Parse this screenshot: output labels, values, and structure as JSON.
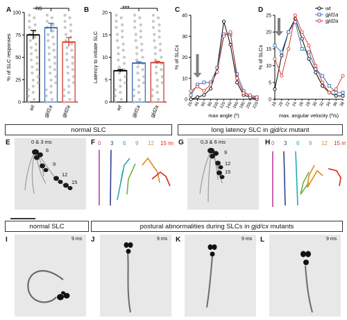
{
  "panel_letters": {
    "a": "A",
    "b": "B",
    "c": "C",
    "d": "D",
    "e": "E",
    "f": "F",
    "g": "G",
    "h": "H",
    "i": "I",
    "j": "J",
    "k": "K",
    "l": "L"
  },
  "colors": {
    "wt": "#000000",
    "gjd1a": "#3b6fb6",
    "gjd2a": "#d33a2c",
    "bar_fill": "#bdbdbd",
    "dot": "#bdbdbd",
    "arrow": "#7f7f7f"
  },
  "chart_data": [
    {
      "id": "A",
      "type": "bar",
      "ylabel": "% of SLC responses",
      "categories": [
        "wt",
        "gjd1a",
        "gjd2a"
      ],
      "values": [
        75,
        83,
        67
      ],
      "errors": [
        5,
        5,
        5
      ],
      "ylim": [
        0,
        100
      ],
      "yticks": [
        0,
        25,
        50,
        75,
        100
      ],
      "significance": "ns"
    },
    {
      "id": "B",
      "type": "bar",
      "ylabel": "Latency to initiate SLC",
      "categories": [
        "wt",
        "gjd1a",
        "gjd2a"
      ],
      "values": [
        7,
        8.7,
        8.8
      ],
      "errors": [
        0.3,
        0.3,
        0.3
      ],
      "ylim": [
        0,
        20
      ],
      "yticks": [
        0,
        5,
        10,
        15,
        20
      ],
      "significance": "***"
    },
    {
      "id": "C",
      "type": "line",
      "xlabel": "max angle (º)",
      "ylabel": "% of SLCs",
      "x": [
        20,
        40,
        60,
        80,
        100,
        120,
        140,
        160,
        180,
        200,
        220
      ],
      "xtick_labels": [
        "20",
        "40",
        "60",
        "80",
        "100",
        "120",
        "140",
        "160",
        "180",
        "200",
        "220"
      ],
      "ylim": [
        0,
        40
      ],
      "yticks": [
        0,
        10,
        20,
        30,
        40
      ],
      "series": [
        {
          "name": "wt",
          "values": [
            0,
            1,
            2,
            5,
            15,
            37,
            26,
            8,
            2,
            1,
            0
          ]
        },
        {
          "name": "gjd1a",
          "values": [
            2,
            7,
            8,
            8,
            15,
            31,
            31,
            12,
            4,
            1,
            1
          ]
        },
        {
          "name": "gjd2a",
          "values": [
            4,
            6,
            4,
            7,
            13,
            30,
            32,
            10,
            3,
            2,
            1
          ]
        }
      ]
    },
    {
      "id": "D",
      "type": "line",
      "xlabel": "max. angular velocity (º/s)",
      "ylabel": "% of SLCs",
      "x": [
        18,
        20,
        22,
        24,
        26,
        28,
        30,
        32,
        34,
        36,
        38
      ],
      "xtick_labels": [
        "18",
        "20",
        "22",
        "24",
        "26",
        "28",
        "30",
        "32",
        "34",
        "36",
        "38"
      ],
      "ylim": [
        0,
        25
      ],
      "yticks": [
        0,
        5,
        10,
        15,
        20,
        25
      ],
      "series": [
        {
          "name": "wt",
          "values": [
            3,
            13,
            20,
            24,
            18,
            12,
            8,
            4,
            2,
            1,
            1
          ]
        },
        {
          "name": "gjd1a",
          "values": [
            16,
            14,
            20,
            23,
            15,
            14,
            9,
            7,
            4,
            2,
            2
          ]
        },
        {
          "name": "gjd2a",
          "values": [
            12,
            7,
            15,
            25,
            20,
            16,
            10,
            5,
            2,
            3,
            7
          ]
        }
      ]
    }
  ],
  "sections": {
    "normal_slc": "normal SLC",
    "long_latency_prefix": "long latency SLC in ",
    "long_latency_italic": "gjd/cx",
    "long_latency_suffix": " mutant",
    "normal_slc_2": "normal SLC",
    "postural_prefix": "postural abnormalities during SLCs in ",
    "postural_italic": "gjd/cx",
    "postural_suffix": " mutants"
  },
  "panel_e": {
    "a1": "0 & 3 ms",
    "a2": "6",
    "a3": "9",
    "a4": "12",
    "a5": "15"
  },
  "panel_g": {
    "a1": "0,3 & 6 ms",
    "a2": "9",
    "a3": "12",
    "a4": "15"
  },
  "trace_times": [
    {
      "label": "0",
      "color": "#c2399a"
    },
    {
      "label": "3",
      "color": "#2f3d8f"
    },
    {
      "label": "6",
      "color": "#23a9b0"
    },
    {
      "label": "9",
      "color": "#6ab344"
    },
    {
      "label": "12",
      "color": "#e08a1e"
    },
    {
      "label": "15 ms",
      "color": "#d7261e"
    }
  ],
  "timestamps": {
    "i": "9 ms",
    "j": "9 ms",
    "k": "9 ms",
    "l": "9 ms"
  }
}
